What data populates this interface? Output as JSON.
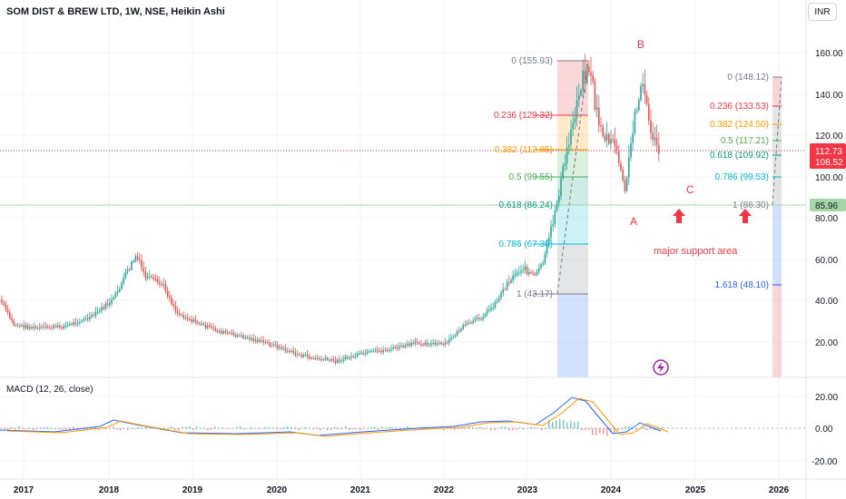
{
  "header": {
    "title": "SOM DIST & BREW LTD, 1W, NSE, Heikin Ashi",
    "currency": "INR"
  },
  "macd": {
    "label": "MACD (12, 26, close)",
    "ticks": [
      "20.00",
      "0.00",
      "-20.00"
    ]
  },
  "price_axis": {
    "ticks": [
      "160.00",
      "140.00",
      "120.00",
      "100.00",
      "80.00",
      "60.00",
      "40.00",
      "20.00"
    ],
    "badges": [
      {
        "text": "112.73",
        "color": "#f23645"
      },
      {
        "text": "108.52",
        "color": "#f23645"
      },
      {
        "text": "85.96",
        "color": "#a5d6a7"
      }
    ]
  },
  "time_axis": {
    "labels": [
      "2017",
      "2018",
      "2019",
      "2020",
      "2021",
      "2022",
      "2023",
      "2024",
      "2025",
      "2026"
    ]
  },
  "fib_left": [
    {
      "label": "0 (155.93)",
      "color": "#787b86"
    },
    {
      "label": "0.236 (129.32)",
      "color": "#f23645"
    },
    {
      "label": "0.382 (112.85)",
      "color": "#ff9800"
    },
    {
      "label": "0.5 (99.55)",
      "color": "#4caf50"
    },
    {
      "label": "0.618 (86.24)",
      "color": "#089981"
    },
    {
      "label": "0.786 (67.30)",
      "color": "#00bcd4"
    },
    {
      "label": "1 (43.17)",
      "color": "#787b86"
    }
  ],
  "fib_right": [
    {
      "label": "0 (148.12)",
      "color": "#787b86"
    },
    {
      "label": "0.236 (133.53)",
      "color": "#f23645"
    },
    {
      "label": "0.382 (124.50)",
      "color": "#ff9800"
    },
    {
      "label": "0.5 (117.21)",
      "color": "#4caf50"
    },
    {
      "label": "0.618 (109.92)",
      "color": "#089981"
    },
    {
      "label": "0.786 (99.53)",
      "color": "#00bcd4"
    },
    {
      "label": "1 (86.30)",
      "color": "#787b86"
    },
    {
      "label": "1.618 (48.10)",
      "color": "#2962ff"
    }
  ],
  "annotations": {
    "wave_a": "A",
    "wave_b": "B",
    "wave_c": "C",
    "support_note": "major support area",
    "color": "#f23645"
  },
  "colors": {
    "up": "#26a69a",
    "down": "#ef5350",
    "macd_line": "#2962ff",
    "signal_line": "#ff9800"
  },
  "icons": {
    "event": "lightning-icon"
  }
}
